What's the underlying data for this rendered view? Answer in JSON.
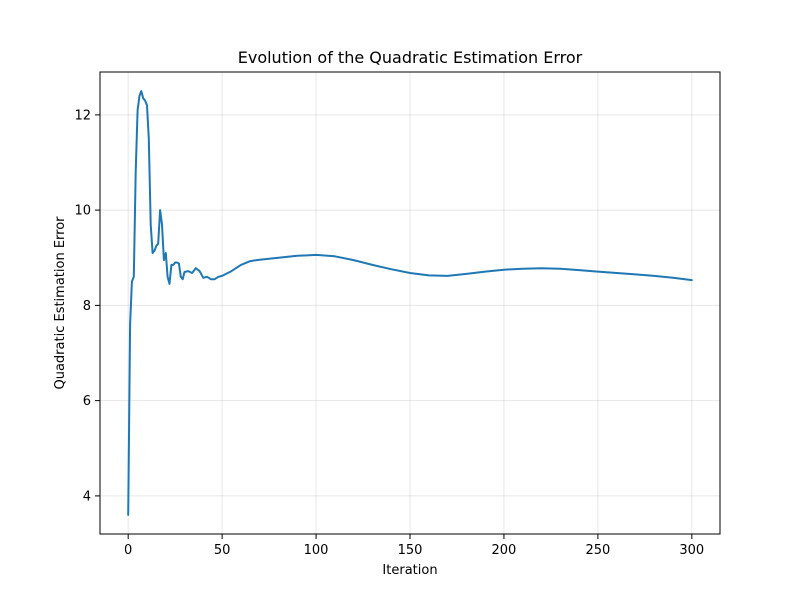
{
  "chart_data": {
    "type": "line",
    "title": "Evolution of the Quadratic Estimation Error",
    "xlabel": "Iteration",
    "ylabel": "Quadratic Estimation Error",
    "xlim": [
      -15,
      315
    ],
    "ylim": [
      3.2,
      12.9
    ],
    "xticks": [
      0,
      50,
      100,
      150,
      200,
      250,
      300
    ],
    "yticks": [
      4,
      6,
      8,
      10,
      12
    ],
    "grid": true,
    "legend": "none",
    "line_color": "#1f77b4",
    "series": [
      {
        "x": [
          0,
          1,
          2,
          3,
          4,
          5,
          6,
          7,
          8,
          9,
          10,
          11,
          12,
          13,
          14,
          15,
          16,
          17,
          18,
          19,
          20,
          21,
          22,
          23,
          24,
          25,
          26,
          27,
          28,
          29,
          30,
          32,
          34,
          36,
          38,
          40,
          42,
          44,
          46,
          48,
          50,
          55,
          60,
          65,
          70,
          75,
          80,
          85,
          90,
          95,
          100,
          110,
          120,
          130,
          140,
          150,
          160,
          170,
          180,
          190,
          200,
          210,
          220,
          230,
          240,
          250,
          260,
          270,
          280,
          290,
          300
        ],
        "y": [
          3.6,
          7.6,
          8.5,
          8.6,
          10.8,
          12.1,
          12.4,
          12.5,
          12.35,
          12.3,
          12.2,
          11.5,
          9.7,
          9.1,
          9.15,
          9.25,
          9.3,
          10.0,
          9.7,
          8.95,
          9.1,
          8.6,
          8.45,
          8.85,
          8.85,
          8.9,
          8.9,
          8.88,
          8.6,
          8.55,
          8.7,
          8.72,
          8.68,
          8.78,
          8.72,
          8.58,
          8.6,
          8.55,
          8.55,
          8.6,
          8.62,
          8.72,
          8.85,
          8.93,
          8.96,
          8.98,
          9.0,
          9.02,
          9.04,
          9.05,
          9.06,
          9.03,
          8.95,
          8.85,
          8.76,
          8.68,
          8.63,
          8.62,
          8.66,
          8.71,
          8.75,
          8.77,
          8.78,
          8.77,
          8.74,
          8.71,
          8.68,
          8.65,
          8.62,
          8.58,
          8.53
        ]
      }
    ]
  }
}
